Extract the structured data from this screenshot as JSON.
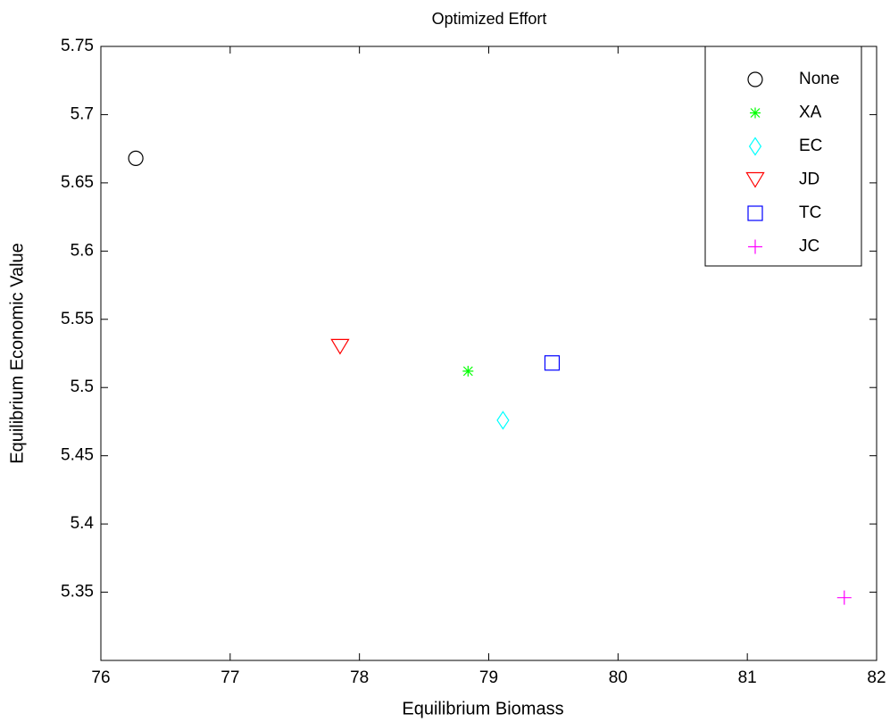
{
  "chart_data": {
    "type": "scatter",
    "title": "Optimized Effort",
    "xlabel": "Equilibrium Biomass",
    "ylabel": "Equilibrium Economic Value",
    "xlim": [
      76,
      82
    ],
    "xticks": [
      76,
      77,
      78,
      79,
      80,
      81,
      82
    ],
    "ylim": [
      5.3,
      5.75
    ],
    "yticks": [
      5.35,
      5.4,
      5.45,
      5.5,
      5.55,
      5.6,
      5.65,
      5.7,
      5.75
    ],
    "grid": false,
    "legend": "upper right",
    "series": [
      {
        "name": "None",
        "color": "#000000",
        "marker": "circle",
        "x": [
          76.27
        ],
        "values": [
          5.668
        ]
      },
      {
        "name": "XA",
        "color": "#00ff00",
        "marker": "star",
        "x": [
          78.84
        ],
        "values": [
          5.512
        ]
      },
      {
        "name": "EC",
        "color": "#00ffff",
        "marker": "diamond",
        "x": [
          79.11
        ],
        "values": [
          5.476
        ]
      },
      {
        "name": "JD",
        "color": "#ff0000",
        "marker": "triangle-down",
        "x": [
          77.85
        ],
        "values": [
          5.53
        ]
      },
      {
        "name": "TC",
        "color": "#0000ff",
        "marker": "square",
        "x": [
          79.49
        ],
        "values": [
          5.518
        ]
      },
      {
        "name": "JC",
        "color": "#ff00ff",
        "marker": "plus",
        "x": [
          81.75
        ],
        "values": [
          5.346
        ]
      }
    ]
  }
}
